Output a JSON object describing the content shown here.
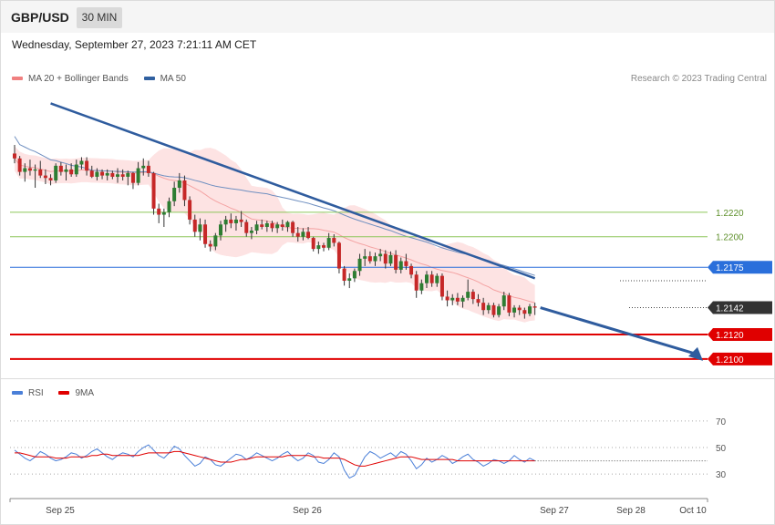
{
  "header": {
    "symbol": "GBP/USD",
    "timeframe": "30 MIN",
    "timestamp": "Wednesday, September 27, 2023 7:21:11 AM CET"
  },
  "legend_main": [
    {
      "label": "MA 20 + Bollinger Bands",
      "color": "#f08080"
    },
    {
      "label": "MA 50",
      "color": "#3060a0"
    }
  ],
  "legend_rsi": [
    {
      "label": "RSI",
      "color": "#4a7fd8"
    },
    {
      "label": "9MA",
      "color": "#e00000"
    }
  ],
  "credit": "Research © 2023 Trading Central",
  "colors": {
    "up": "#2e7d32",
    "down": "#c62828",
    "band": "#fde3e3",
    "support": "#e00000",
    "resistance_green": "#8dc65a",
    "pivot_blue": "#2a6fdb",
    "trend": "#2f5c9e",
    "last": "#333333"
  },
  "chart_data": [
    {
      "type": "candlestick",
      "title": "GBP/USD",
      "ylim": [
        1.2088,
        1.2319
      ],
      "x_ticks": [
        "Sep 25",
        "Sep 26",
        "Sep 27",
        "Sep 28",
        "Oct 10"
      ],
      "levels": [
        {
          "value": 1.222,
          "label": "1.2220",
          "role": "resistance"
        },
        {
          "value": 1.22,
          "label": "1.2200",
          "role": "resistance"
        },
        {
          "value": 1.2175,
          "label": "1.2175",
          "role": "pivot"
        },
        {
          "value": 1.2142,
          "label": "1.2142",
          "role": "last"
        },
        {
          "value": 1.212,
          "label": "1.2120",
          "role": "support"
        },
        {
          "value": 1.21,
          "label": "1.2100",
          "role": "support"
        }
      ],
      "ohlc": [
        [
          1.2268,
          1.2275,
          1.226,
          1.2264
        ],
        [
          1.2264,
          1.2266,
          1.225,
          1.2253
        ],
        [
          1.2253,
          1.226,
          1.2245,
          1.2256
        ],
        [
          1.2256,
          1.2263,
          1.225,
          1.2254
        ],
        [
          1.2254,
          1.2259,
          1.224,
          1.2255
        ],
        [
          1.2255,
          1.2262,
          1.2248,
          1.225
        ],
        [
          1.225,
          1.2255,
          1.2243,
          1.2248
        ],
        [
          1.2248,
          1.2251,
          1.2242,
          1.2246
        ],
        [
          1.2246,
          1.226,
          1.2244,
          1.2258
        ],
        [
          1.2258,
          1.2261,
          1.225,
          1.2253
        ],
        [
          1.2253,
          1.2259,
          1.2246,
          1.2255
        ],
        [
          1.2255,
          1.226,
          1.2249,
          1.2251
        ],
        [
          1.2251,
          1.2263,
          1.2249,
          1.2259
        ],
        [
          1.2259,
          1.2265,
          1.2255,
          1.2262
        ],
        [
          1.2262,
          1.2265,
          1.225,
          1.2254
        ],
        [
          1.2254,
          1.2258,
          1.2248,
          1.2249
        ],
        [
          1.2249,
          1.2256,
          1.2246,
          1.2253
        ],
        [
          1.2253,
          1.2255,
          1.2247,
          1.225
        ],
        [
          1.225,
          1.2255,
          1.2246,
          1.2252
        ],
        [
          1.2252,
          1.2254,
          1.2247,
          1.2249
        ],
        [
          1.2249,
          1.2256,
          1.2244,
          1.2251
        ],
        [
          1.2251,
          1.2255,
          1.2246,
          1.2249
        ],
        [
          1.2249,
          1.2254,
          1.2242,
          1.2252
        ],
        [
          1.2252,
          1.2253,
          1.2239,
          1.2244
        ],
        [
          1.2244,
          1.2261,
          1.2242,
          1.2256
        ],
        [
          1.2256,
          1.2264,
          1.225,
          1.2258
        ],
        [
          1.2258,
          1.2262,
          1.2249,
          1.2252
        ],
        [
          1.2252,
          1.2253,
          1.2218,
          1.2223
        ],
        [
          1.2223,
          1.2227,
          1.2211,
          1.2218
        ],
        [
          1.2218,
          1.2223,
          1.2208,
          1.222
        ],
        [
          1.222,
          1.2232,
          1.2216,
          1.2229
        ],
        [
          1.2229,
          1.2245,
          1.2225,
          1.224
        ],
        [
          1.224,
          1.2252,
          1.2236,
          1.2246
        ],
        [
          1.2246,
          1.225,
          1.2225,
          1.223
        ],
        [
          1.223,
          1.2233,
          1.221,
          1.2214
        ],
        [
          1.2214,
          1.2218,
          1.22,
          1.2204
        ],
        [
          1.2204,
          1.2215,
          1.2197,
          1.221
        ],
        [
          1.221,
          1.2214,
          1.2191,
          1.2194
        ],
        [
          1.2194,
          1.2197,
          1.2188,
          1.2192
        ],
        [
          1.2192,
          1.2203,
          1.2189,
          1.2201
        ],
        [
          1.2201,
          1.2213,
          1.2197,
          1.221
        ],
        [
          1.221,
          1.2217,
          1.2204,
          1.2214
        ],
        [
          1.2214,
          1.2219,
          1.2207,
          1.2211
        ],
        [
          1.2211,
          1.2217,
          1.2205,
          1.2214
        ],
        [
          1.2214,
          1.2221,
          1.2208,
          1.2212
        ],
        [
          1.2212,
          1.2214,
          1.22,
          1.2203
        ],
        [
          1.2203,
          1.2208,
          1.2198,
          1.2205
        ],
        [
          1.2205,
          1.2213,
          1.2202,
          1.221
        ],
        [
          1.221,
          1.2214,
          1.2206,
          1.2208
        ],
        [
          1.2208,
          1.2213,
          1.2204,
          1.2211
        ],
        [
          1.2211,
          1.2213,
          1.2204,
          1.2207
        ],
        [
          1.2207,
          1.2212,
          1.2203,
          1.221
        ],
        [
          1.221,
          1.2214,
          1.2205,
          1.2208
        ],
        [
          1.2208,
          1.2213,
          1.2204,
          1.2212
        ],
        [
          1.2212,
          1.2213,
          1.22,
          1.2203
        ],
        [
          1.2203,
          1.2208,
          1.2196,
          1.22
        ],
        [
          1.22,
          1.2207,
          1.2197,
          1.2204
        ],
        [
          1.2204,
          1.2208,
          1.2198,
          1.2199
        ],
        [
          1.2199,
          1.22,
          1.2188,
          1.219
        ],
        [
          1.219,
          1.2196,
          1.2186,
          1.2193
        ],
        [
          1.2193,
          1.2195,
          1.2188,
          1.2191
        ],
        [
          1.2191,
          1.2203,
          1.2189,
          1.2199
        ],
        [
          1.2199,
          1.2202,
          1.2192,
          1.2195
        ],
        [
          1.2195,
          1.2196,
          1.217,
          1.2174
        ],
        [
          1.2174,
          1.2176,
          1.216,
          1.2164
        ],
        [
          1.2164,
          1.217,
          1.2158,
          1.2166
        ],
        [
          1.2166,
          1.2174,
          1.2163,
          1.2172
        ],
        [
          1.2172,
          1.2186,
          1.2168,
          1.2182
        ],
        [
          1.2182,
          1.219,
          1.2176,
          1.2184
        ],
        [
          1.2184,
          1.2188,
          1.2178,
          1.218
        ],
        [
          1.218,
          1.2187,
          1.2176,
          1.2184
        ],
        [
          1.2184,
          1.219,
          1.218,
          1.2186
        ],
        [
          1.2186,
          1.2189,
          1.2174,
          1.2178
        ],
        [
          1.2178,
          1.2188,
          1.2176,
          1.2185
        ],
        [
          1.2185,
          1.2189,
          1.217,
          1.2173
        ],
        [
          1.2173,
          1.2183,
          1.217,
          1.218
        ],
        [
          1.218,
          1.2186,
          1.2173,
          1.2176
        ],
        [
          1.2176,
          1.2178,
          1.2166,
          1.2169
        ],
        [
          1.2169,
          1.2172,
          1.215,
          1.2156
        ],
        [
          1.2156,
          1.2165,
          1.2153,
          1.2162
        ],
        [
          1.2162,
          1.2172,
          1.2158,
          1.2169
        ],
        [
          1.2169,
          1.2172,
          1.2159,
          1.2162
        ],
        [
          1.2162,
          1.217,
          1.2159,
          1.2168
        ],
        [
          1.2168,
          1.217,
          1.2148,
          1.2151
        ],
        [
          1.2151,
          1.2156,
          1.2143,
          1.2148
        ],
        [
          1.2148,
          1.2153,
          1.2144,
          1.215
        ],
        [
          1.215,
          1.2154,
          1.2144,
          1.2147
        ],
        [
          1.2147,
          1.2152,
          1.2142,
          1.215
        ],
        [
          1.215,
          1.2165,
          1.2148,
          1.2155
        ],
        [
          1.2155,
          1.2157,
          1.2145,
          1.2149
        ],
        [
          1.2149,
          1.2153,
          1.2143,
          1.2146
        ],
        [
          1.2146,
          1.215,
          1.2136,
          1.214
        ],
        [
          1.214,
          1.2146,
          1.2137,
          1.2144
        ],
        [
          1.2144,
          1.2146,
          1.2134,
          1.2136
        ],
        [
          1.2136,
          1.2145,
          1.2134,
          1.2143
        ],
        [
          1.2143,
          1.2155,
          1.214,
          1.2152
        ],
        [
          1.2152,
          1.2154,
          1.2135,
          1.2138
        ],
        [
          1.2138,
          1.2144,
          1.2134,
          1.2142
        ],
        [
          1.2142,
          1.2144,
          1.2136,
          1.214
        ],
        [
          1.214,
          1.2142,
          1.2133,
          1.2137
        ],
        [
          1.2137,
          1.2145,
          1.2135,
          1.2143
        ],
        [
          1.2143,
          1.2146,
          1.2136,
          1.2142
        ]
      ],
      "ma50_tail": 1.2164,
      "trendline": {
        "from_candle": 7,
        "from_price": 1.2309,
        "to_candle": 101,
        "to_price": 1.2166
      },
      "projection": {
        "from_price": 1.2142,
        "to_price": 1.21
      }
    },
    {
      "type": "line",
      "title": "RSI",
      "ylim": [
        15,
        85
      ],
      "y_ticks": [
        30,
        50,
        70
      ],
      "rsi": [
        48,
        45,
        42,
        40,
        43,
        47,
        45,
        42,
        40,
        41,
        43,
        46,
        45,
        42,
        44,
        47,
        49,
        46,
        43,
        41,
        44,
        46,
        45,
        43,
        47,
        50,
        52,
        48,
        44,
        42,
        46,
        51,
        49,
        44,
        40,
        36,
        38,
        43,
        41,
        37,
        36,
        39,
        42,
        45,
        44,
        41,
        43,
        46,
        44,
        42,
        40,
        42,
        45,
        47,
        43,
        40,
        42,
        46,
        44,
        39,
        38,
        41,
        46,
        43,
        33,
        27,
        29,
        36,
        43,
        47,
        45,
        42,
        44,
        46,
        43,
        47,
        45,
        40,
        34,
        37,
        42,
        39,
        41,
        44,
        42,
        38,
        40,
        43,
        45,
        41,
        39,
        36,
        38,
        41,
        40,
        38,
        40,
        44,
        41,
        39,
        42,
        40
      ],
      "ma9": [
        46,
        46,
        45,
        44,
        43,
        43,
        43,
        43,
        42,
        42,
        42,
        43,
        43,
        43,
        43,
        44,
        44,
        45,
        45,
        44,
        44,
        44,
        44,
        44,
        44,
        45,
        46,
        46,
        46,
        46,
        46,
        47,
        47,
        46,
        45,
        44,
        43,
        42,
        41,
        40,
        39,
        39,
        39,
        40,
        41,
        41,
        42,
        43,
        43,
        43,
        43,
        43,
        43,
        44,
        44,
        44,
        44,
        44,
        43,
        43,
        42,
        42,
        42,
        42,
        41,
        39,
        37,
        36,
        36,
        37,
        38,
        39,
        40,
        41,
        42,
        43,
        43,
        43,
        42,
        41,
        41,
        41,
        41,
        41,
        41,
        41,
        40,
        40,
        40,
        40,
        40,
        40,
        40,
        40,
        40,
        40,
        40,
        40,
        40,
        40,
        40,
        40
      ]
    }
  ]
}
